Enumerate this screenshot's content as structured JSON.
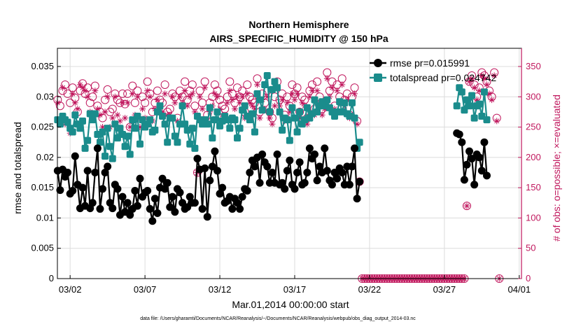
{
  "chart_data": {
    "type": "line",
    "title": "Northern Hemisphere",
    "subtitle": "AIRS_SPECIFIC_HUMIDITY @ 150 hPa",
    "xlabel": "Mar.01,2014 00:00:00 start",
    "ylabel": "rmse and totalspread",
    "ylabel_right": "# of obs: o=possible; ×=evaluated",
    "footnote": "data file: /Users/gharamti/Documents/NCAR/Reanalysis/~/Documents/NCAR/Reanalysis/webpub/obs_diag_output_2014-03.nc",
    "x_tick_labels": [
      "03/02",
      "03/07",
      "03/12",
      "03/17",
      "03/22",
      "03/27",
      "04/01"
    ],
    "x_tick_days": [
      1,
      6,
      11,
      16,
      21,
      26,
      31
    ],
    "xlim_days": [
      0.15,
      31.15
    ],
    "ylim": [
      0,
      0.038
    ],
    "y_ticks": [
      0,
      0.005,
      0.01,
      0.015,
      0.02,
      0.025,
      0.03,
      0.035
    ],
    "y_tick_labels": [
      "0",
      "0.005",
      "0.01",
      "0.015",
      "0.02",
      "0.025",
      "0.03",
      "0.035"
    ],
    "ylim_right": [
      0,
      380
    ],
    "y_ticks_right": [
      0,
      50,
      100,
      150,
      200,
      250,
      300,
      350
    ],
    "y_tick_labels_right": [
      "0",
      "50",
      "100",
      "150",
      "200",
      "250",
      "300",
      "350"
    ],
    "grid": true,
    "legend_position": "top-right",
    "colors": {
      "rmse": "#000000",
      "totalspread": "#1a8c8c",
      "obs": "#c0175d"
    },
    "series": [
      {
        "name": "rmse pr=0.015991",
        "key": "rmse",
        "values": [
          0.0178,
          0.0146,
          0.018,
          0.0168,
          0.0175,
          0.014,
          0.0145,
          0.0202,
          0.0155,
          0.0116,
          0.015,
          0.012,
          0.0178,
          0.0116,
          0.0125,
          0.0175,
          0.0215,
          0.0115,
          0.0148,
          0.0175,
          0.0185,
          0.0125,
          0.0116,
          0.0155,
          0.0148,
          0.0105,
          0.0135,
          0.011,
          0.0125,
          0.0105,
          0.0115,
          0.0145,
          0.012,
          0.0165,
          0.0135,
          0.0142,
          0.0145,
          0.0115,
          0.0095,
          0.0132,
          0.0108,
          0.015,
          0.0165,
          0.0148,
          0.0158,
          0.0118,
          0.0135,
          0.011,
          0.0148,
          0.0142,
          0.0125,
          0.0115,
          0.0118,
          0.0135,
          0.0125,
          0.0125,
          0.0198,
          0.018,
          0.0115,
          0.0182,
          0.0102,
          0.0162,
          0.0185,
          0.021,
          0.0178,
          0.014,
          0.015,
          0.0125,
          0.0128,
          0.0135,
          0.0115,
          0.0132,
          0.0125,
          0.0115,
          0.0135,
          0.0148,
          0.0145,
          0.0175,
          0.0195,
          0.0185,
          0.02,
          0.0158,
          0.0205,
          0.0192,
          0.0185,
          0.0158,
          0.0175,
          0.0158,
          0.0205,
          0.0155,
          0.0158,
          0.0148,
          0.0178,
          0.0195,
          0.0155,
          0.0148,
          0.0175,
          0.0192,
          0.0155,
          0.0158,
          0.0175,
          0.0215,
          0.0198,
          0.0205,
          0.0162,
          0.0185,
          0.0175,
          0.0215,
          0.0178,
          0.0162,
          0.0155,
          0.0175,
          0.0165,
          0.0182,
          0.0175,
          0.0155,
          0.0185,
          0.0155,
          0.0185,
          0.0215,
          0.0132,
          0.016,
          null,
          null,
          null,
          null,
          null,
          null,
          null,
          null,
          null,
          null,
          null,
          null,
          null,
          null,
          null,
          null,
          null,
          null,
          null,
          null,
          null,
          null,
          null,
          null,
          null,
          null,
          null,
          null,
          null,
          null,
          null,
          null,
          null,
          null,
          null,
          null,
          null,
          null,
          0.024,
          0.0238,
          0.0225,
          0.0163,
          0.0188,
          0.021,
          0.0198,
          0.0155,
          0.0205,
          0.02,
          0.0178,
          0.0225,
          0.017
        ]
      },
      {
        "name": "totalspread pr=0.024742",
        "key": "totalspread",
        "values": [
          0.0262,
          0.0255,
          0.0268,
          0.0262,
          0.0258,
          0.0248,
          0.0242,
          0.027,
          0.0255,
          0.0248,
          0.026,
          0.0215,
          0.0228,
          0.0272,
          0.0262,
          0.0272,
          0.0238,
          0.0225,
          0.0242,
          0.0202,
          0.0248,
          0.0218,
          0.0198,
          0.0255,
          0.0232,
          0.0248,
          0.0238,
          0.0218,
          0.0235,
          0.0205,
          0.0262,
          0.0248,
          0.0268,
          0.0222,
          0.0262,
          0.025,
          0.0255,
          0.0262,
          0.0242,
          0.0245,
          0.0275,
          0.0285,
          0.0268,
          0.0255,
          0.0225,
          0.0265,
          0.0265,
          0.0235,
          0.0225,
          0.0255,
          0.0285,
          0.0255,
          0.0245,
          0.0222,
          0.0248,
          0.0215,
          0.0268,
          0.0262,
          0.0255,
          0.0262,
          0.0255,
          0.0282,
          0.0232,
          0.0262,
          0.0275,
          0.0252,
          0.026,
          0.0268,
          0.0262,
          0.0248,
          0.0265,
          0.0262,
          0.0232,
          0.0248,
          0.0278,
          0.0285,
          0.0268,
          0.0262,
          0.0272,
          0.0242,
          0.0305,
          0.0295,
          0.0278,
          0.032,
          0.0335,
          0.0275,
          0.0312,
          0.0325,
          0.0315,
          0.0275,
          0.0245,
          0.0265,
          0.0262,
          0.0228,
          0.0282,
          0.0265,
          0.0242,
          0.0275,
          0.0255,
          0.0262,
          0.0282,
          0.0265,
          0.0272,
          0.0295,
          0.0275,
          0.0285,
          0.0292,
          0.0285,
          0.0295,
          0.0282,
          0.0275,
          0.0268,
          0.0275,
          0.0292,
          0.0275,
          0.029,
          0.0272,
          0.0268,
          0.029,
          0.0265,
          0.0215,
          0.0225,
          null,
          null,
          null,
          null,
          null,
          null,
          null,
          null,
          null,
          null,
          null,
          null,
          null,
          null,
          null,
          null,
          null,
          null,
          null,
          null,
          null,
          null,
          null,
          null,
          null,
          null,
          null,
          null,
          null,
          null,
          null,
          null,
          null,
          null,
          null,
          null,
          null,
          null,
          0.0285,
          0.0315,
          0.0308,
          0.0278,
          0.0295,
          0.0285,
          0.0302,
          0.0265,
          0.0285,
          0.0288,
          0.0268,
          0.0308,
          0.0262
        ]
      },
      {
        "name": "possible",
        "key": "possible",
        "axis": "right",
        "values": [
          295,
          285,
          310,
          320,
          305,
          290,
          315,
          298,
          275,
          310,
          322,
          305,
          315,
          290,
          300,
          318,
          285,
          275,
          265,
          295,
          312,
          275,
          280,
          305,
          295,
          290,
          305,
          288,
          305,
          250,
          318,
          290,
          310,
          255,
          300,
          290,
          325,
          305,
          275,
          290,
          310,
          295,
          290,
          320,
          275,
          280,
          305,
          300,
          265,
          310,
          300,
          325,
          295,
          310,
          320,
          285,
          175,
          310,
          290,
          325,
          270,
          290,
          300,
          320,
          310,
          295,
          285,
          280,
          300,
          325,
          305,
          290,
          315,
          300,
          310,
          275,
          320,
          300,
          295,
          290,
          330,
          275,
          305,
          290,
          310,
          275,
          265,
          300,
          325,
          295,
          305,
          270,
          300,
          285,
          320,
          305,
          315,
          275,
          300,
          295,
          265,
          310,
          320,
          280,
          325,
          300,
          280,
          290,
          340,
          310,
          325,
          285,
          320,
          300,
          330,
          295,
          305,
          270,
          300,
          315,
          260,
          160,
          0,
          0,
          0,
          0,
          0,
          0,
          0,
          0,
          0,
          0,
          0,
          0,
          0,
          0,
          0,
          0,
          0,
          0,
          0,
          0,
          0,
          0,
          0,
          0,
          0,
          0,
          0,
          0,
          0,
          0,
          0,
          0,
          0,
          0,
          0,
          0,
          0,
          0,
          0,
          0,
          0,
          0,
          120,
          325,
          335,
          320,
          300,
          315,
          340,
          335,
          325,
          310,
          300,
          340,
          265,
          0
        ]
      },
      {
        "name": "evaluated",
        "key": "evaluated",
        "axis": "right",
        "values": [
          290,
          255,
          315,
          255,
          260,
          240,
          305,
          290,
          280,
          320,
          315,
          310,
          300,
          275,
          270,
          310,
          280,
          270,
          250,
          275,
          300,
          250,
          265,
          300,
          270,
          260,
          290,
          265,
          290,
          250,
          305,
          270,
          300,
          250,
          280,
          265,
          310,
          300,
          260,
          280,
          295,
          285,
          275,
          305,
          270,
          270,
          300,
          290,
          260,
          300,
          290,
          310,
          285,
          300,
          305,
          275,
          175,
          300,
          280,
          315,
          260,
          275,
          285,
          305,
          300,
          280,
          270,
          270,
          290,
          310,
          295,
          280,
          300,
          290,
          300,
          265,
          305,
          290,
          285,
          280,
          320,
          265,
          295,
          280,
          300,
          265,
          255,
          285,
          315,
          285,
          295,
          260,
          290,
          275,
          305,
          295,
          305,
          265,
          290,
          285,
          255,
          300,
          310,
          270,
          310,
          290,
          270,
          280,
          330,
          300,
          315,
          280,
          310,
          290,
          320,
          285,
          295,
          265,
          290,
          305,
          255,
          160,
          0,
          0,
          0,
          0,
          0,
          0,
          0,
          0,
          0,
          0,
          0,
          0,
          0,
          0,
          0,
          0,
          0,
          0,
          0,
          0,
          0,
          0,
          0,
          0,
          0,
          0,
          0,
          0,
          0,
          0,
          0,
          0,
          0,
          0,
          0,
          0,
          0,
          0,
          0,
          0,
          0,
          0,
          120,
          325,
          330,
          315,
          295,
          310,
          335,
          330,
          320,
          305,
          295,
          335,
          260,
          0
        ]
      }
    ]
  }
}
